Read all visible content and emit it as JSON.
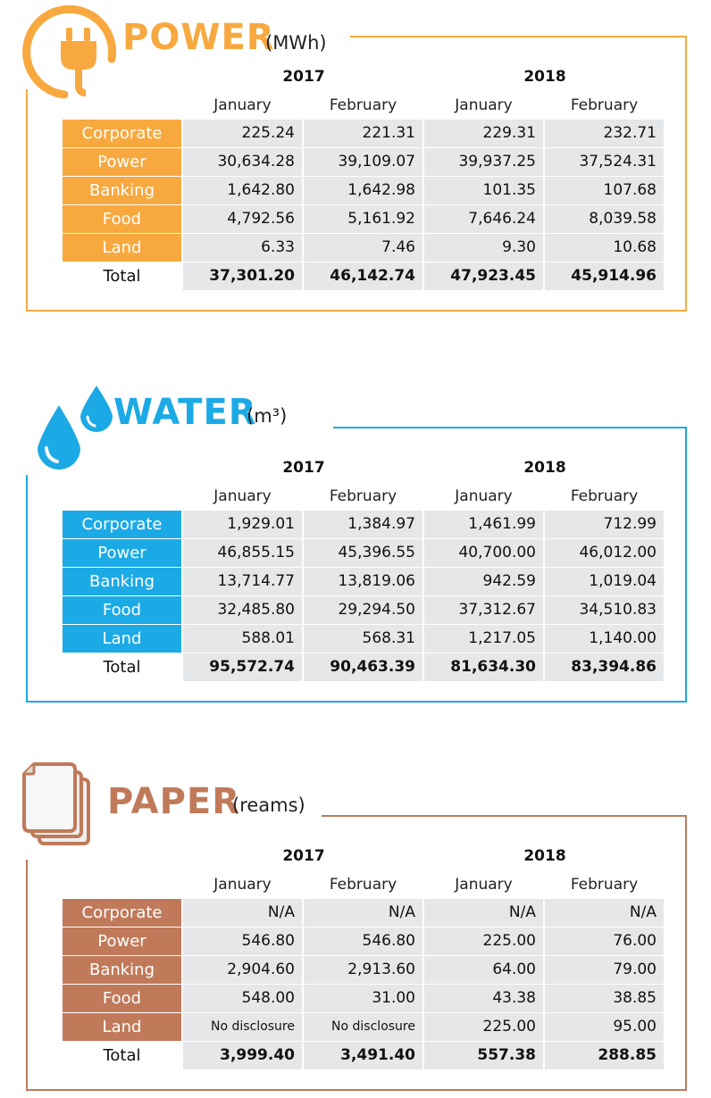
{
  "colors": {
    "power": "#F7A93F",
    "water": "#1CAAE6",
    "paper": "#C07A5A",
    "cell_bg": "#E6E7E8"
  },
  "sections": [
    {
      "key": "power",
      "title": "POWER",
      "unit": "(MWh)",
      "icon": "plug-icon",
      "years": [
        "2017",
        "2018"
      ],
      "months": [
        "January",
        "February",
        "January",
        "February"
      ],
      "rows": [
        {
          "label": "Corporate",
          "values": [
            "225.24",
            "221.31",
            "229.31",
            "232.71"
          ]
        },
        {
          "label": "Power",
          "values": [
            "30,634.28",
            "39,109.07",
            "39,937.25",
            "37,524.31"
          ]
        },
        {
          "label": "Banking",
          "values": [
            "1,642.80",
            "1,642.98",
            "101.35",
            "107.68"
          ]
        },
        {
          "label": "Food",
          "values": [
            "4,792.56",
            "5,161.92",
            "7,646.24",
            "8,039.58"
          ]
        },
        {
          "label": "Land",
          "values": [
            "6.33",
            "7.46",
            "9.30",
            "10.68"
          ]
        }
      ],
      "total": {
        "label": "Total",
        "values": [
          "37,301.20",
          "46,142.74",
          "47,923.45",
          "45,914.96"
        ]
      }
    },
    {
      "key": "water",
      "title": "WATER",
      "unit": "(m³)",
      "icon": "water-drops-icon",
      "years": [
        "2017",
        "2018"
      ],
      "months": [
        "January",
        "February",
        "January",
        "February"
      ],
      "rows": [
        {
          "label": "Corporate",
          "values": [
            "1,929.01",
            "1,384.97",
            "1,461.99",
            "712.99"
          ]
        },
        {
          "label": "Power",
          "values": [
            "46,855.15",
            "45,396.55",
            "40,700.00",
            "46,012.00"
          ]
        },
        {
          "label": "Banking",
          "values": [
            "13,714.77",
            "13,819.06",
            "942.59",
            "1,019.04"
          ]
        },
        {
          "label": "Food",
          "values": [
            "32,485.80",
            "29,294.50",
            "37,312.67",
            "34,510.83"
          ]
        },
        {
          "label": "Land",
          "values": [
            "588.01",
            "568.31",
            "1,217.05",
            "1,140.00"
          ]
        }
      ],
      "total": {
        "label": "Total",
        "values": [
          "95,572.74",
          "90,463.39",
          "81,634.30",
          "83,394.86"
        ]
      }
    },
    {
      "key": "paper",
      "title": "PAPER",
      "unit": "(reams)",
      "icon": "paper-stack-icon",
      "years": [
        "2017",
        "2018"
      ],
      "months": [
        "January",
        "February",
        "January",
        "February"
      ],
      "rows": [
        {
          "label": "Corporate",
          "values": [
            "N/A",
            "N/A",
            "N/A",
            "N/A"
          ]
        },
        {
          "label": "Power",
          "values": [
            "546.80",
            "546.80",
            "225.00",
            "76.00"
          ]
        },
        {
          "label": "Banking",
          "values": [
            "2,904.60",
            "2,913.60",
            "64.00",
            "79.00"
          ]
        },
        {
          "label": "Food",
          "values": [
            "548.00",
            "31.00",
            "43.38",
            "38.85"
          ]
        },
        {
          "label": "Land",
          "values": [
            "No disclosure",
            "No disclosure",
            "225.00",
            "95.00"
          ]
        }
      ],
      "total": {
        "label": "Total",
        "values": [
          "3,999.40",
          "3,491.40",
          "557.38",
          "288.85"
        ]
      }
    }
  ]
}
